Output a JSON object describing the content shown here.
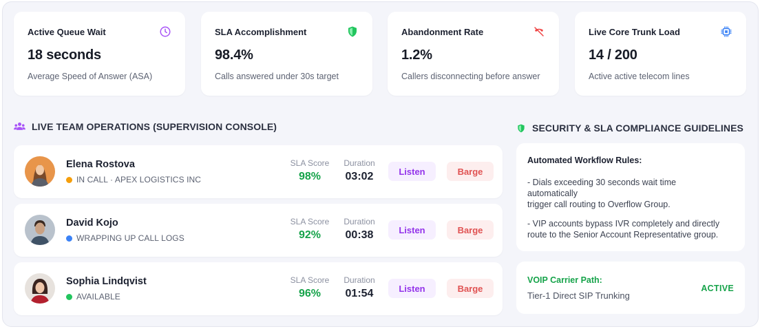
{
  "kpis": [
    {
      "title": "Active Queue Wait",
      "value": "18 seconds",
      "sub": "Average Speed of Answer (ASA)",
      "icon": "clock-icon",
      "icon_color": "#a855f7"
    },
    {
      "title": "SLA Accomplishment",
      "value": "98.4%",
      "sub": "Calls answered under 30s target",
      "icon": "shield-icon",
      "icon_color": "#22c55e"
    },
    {
      "title": "Abandonment Rate",
      "value": "1.2%",
      "sub": "Callers disconnecting before answer",
      "icon": "phone-off-icon",
      "icon_color": "#ef4444"
    },
    {
      "title": "Live Core Trunk Load",
      "value": "14 / 200",
      "sub": "Active active telecom lines",
      "icon": "chip-icon",
      "icon_color": "#3b82f6"
    }
  ],
  "team": {
    "heading": "LIVE TEAM OPERATIONS (SUPERVISION CONSOLE)",
    "sla_label": "SLA Score",
    "duration_label": "Duration",
    "listen_label": "Listen",
    "barge_label": "Barge",
    "agents": [
      {
        "name": "Elena Rostova",
        "status": "IN CALL · APEX LOGISTICS INC",
        "status_color": "#f59e0b",
        "sla": "98%",
        "duration": "03:02"
      },
      {
        "name": "David Kojo",
        "status": "WRAPPING UP CALL LOGS",
        "status_color": "#3b82f6",
        "sla": "92%",
        "duration": "00:38"
      },
      {
        "name": "Sophia Lindqvist",
        "status": "AVAILABLE",
        "status_color": "#22c55e",
        "sla": "96%",
        "duration": "01:54"
      }
    ]
  },
  "compliance": {
    "heading": "SECURITY & SLA COMPLIANCE GUIDELINES",
    "rules_title": "Automated Workflow Rules:",
    "rule1_line1": "- Dials exceeding 30 seconds wait time",
    "rule1_line2": "automatically",
    "rule1_line3": "trigger call routing to Overflow Group.",
    "rule2_line1": "- VIP accounts bypass IVR completely and directly",
    "rule2_line2": "route to the Senior Account Representative group.",
    "carrier_label": "VOIP Carrier Path:",
    "carrier_value": "Tier-1 Direct SIP Trunking",
    "carrier_status": "ACTIVE"
  }
}
